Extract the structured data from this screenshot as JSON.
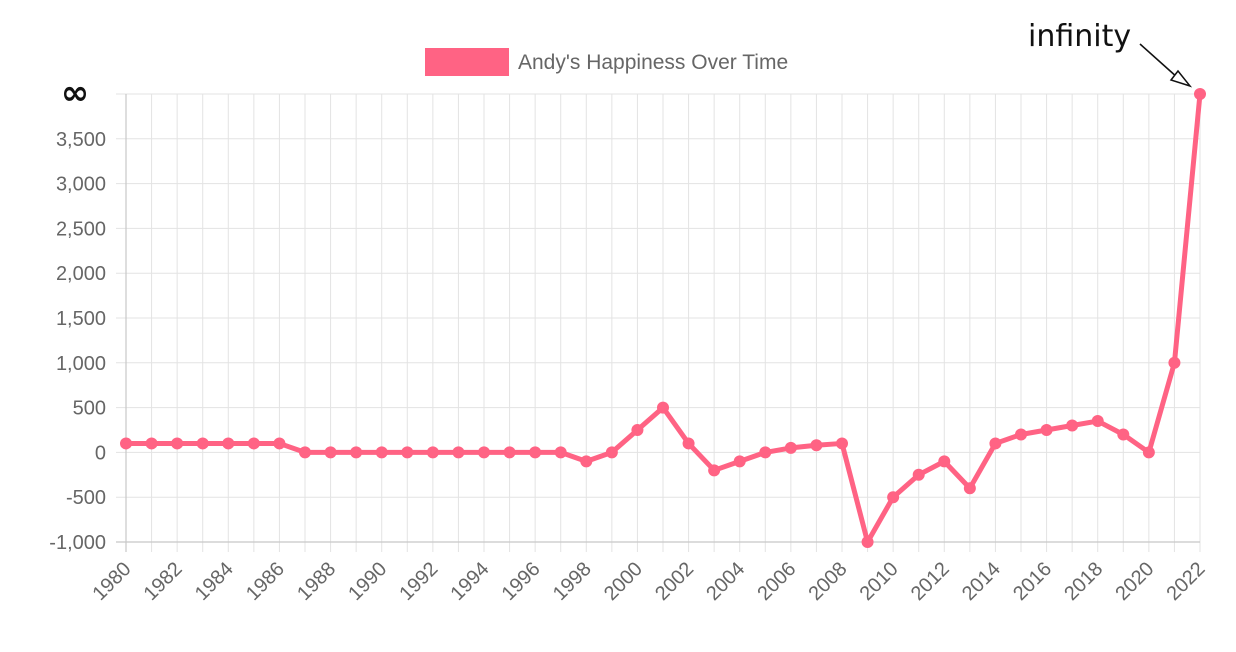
{
  "chart_data": {
    "type": "line",
    "title": "",
    "xlabel": "",
    "ylabel": "",
    "x": [
      1980,
      1981,
      1982,
      1983,
      1984,
      1985,
      1986,
      1987,
      1988,
      1989,
      1990,
      1991,
      1992,
      1993,
      1994,
      1995,
      1996,
      1997,
      1998,
      1999,
      2000,
      2001,
      2002,
      2003,
      2004,
      2005,
      2006,
      2007,
      2008,
      2009,
      2010,
      2011,
      2012,
      2013,
      2014,
      2015,
      2016,
      2017,
      2018,
      2019,
      2020,
      2021,
      2022
    ],
    "x_tick_labels": [
      "1980",
      "1982",
      "1984",
      "1986",
      "1988",
      "1990",
      "1992",
      "1994",
      "1996",
      "1998",
      "2000",
      "2002",
      "2004",
      "2006",
      "2008",
      "2010",
      "2012",
      "2014",
      "2016",
      "2018",
      "2020",
      "2022"
    ],
    "series": [
      {
        "name": "Andy's Happiness Over Time",
        "color": "#ff6384",
        "values": [
          100,
          100,
          100,
          100,
          100,
          100,
          100,
          0,
          0,
          0,
          0,
          0,
          0,
          0,
          0,
          0,
          0,
          0,
          -100,
          0,
          250,
          500,
          100,
          -200,
          -100,
          0,
          50,
          80,
          100,
          -1000,
          -500,
          -250,
          -100,
          -400,
          100,
          200,
          250,
          300,
          350,
          200,
          0,
          1000,
          4000
        ]
      }
    ],
    "ylim": [
      -1000,
      4000
    ],
    "y_tick_labels": [
      "-1,000",
      "-500",
      "0",
      "500",
      "1,000",
      "1,500",
      "2,000",
      "2,500",
      "3,000",
      "3,500",
      "∞"
    ],
    "grid": true,
    "legend": "top-center",
    "annotation": {
      "text": "infinity",
      "target_x": 2022
    }
  }
}
